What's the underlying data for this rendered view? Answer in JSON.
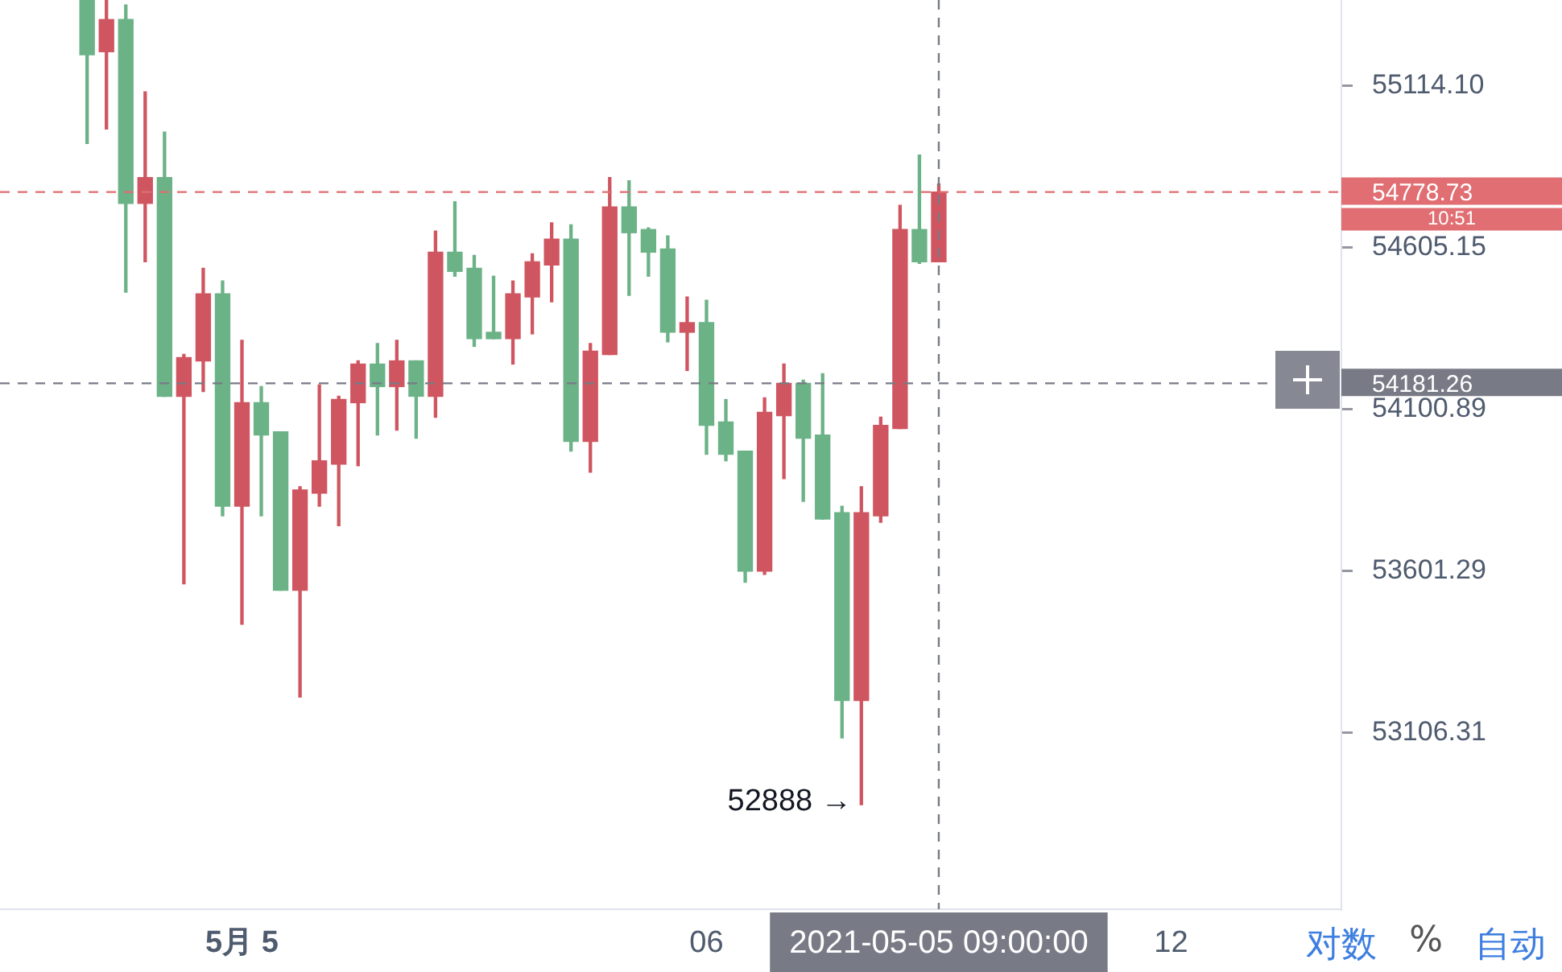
{
  "chart_data": {
    "type": "candlestick",
    "log": true,
    "grid": false,
    "x": [
      -2,
      -1.75,
      -1.5,
      -1.25,
      -1,
      -0.75,
      -0.5,
      -0.25,
      0,
      0.25,
      0.5,
      0.75,
      1,
      1.25,
      1.5,
      1.75,
      2,
      2.25,
      2.5,
      2.75,
      3,
      3.25,
      3.5,
      3.75,
      4,
      4.25,
      4.5,
      4.75,
      5,
      5.25,
      5.5,
      5.75,
      6,
      6.25,
      6.5,
      6.75,
      7,
      7.25,
      7.5,
      7.75,
      8,
      8.25,
      8.5,
      8.75,
      9
    ],
    "ohlc": [
      [
        55384,
        55384,
        54931,
        55211
      ],
      [
        55221,
        55384,
        54977,
        55323
      ],
      [
        55323,
        55369,
        54465,
        54743
      ],
      [
        54743,
        55094,
        54560,
        54824
      ],
      [
        54824,
        54967,
        54141,
        54141
      ],
      [
        54141,
        54271,
        53562,
        54261
      ],
      [
        54251,
        54540,
        54156,
        54460
      ],
      [
        54460,
        54500,
        53771,
        53801
      ],
      [
        53801,
        54315,
        53438,
        54121
      ],
      [
        54121,
        54171,
        53771,
        54021
      ],
      [
        54031,
        54031,
        53542,
        53542
      ],
      [
        53542,
        53861,
        53215,
        53851
      ],
      [
        53841,
        54176,
        53801,
        53941
      ],
      [
        53931,
        54141,
        53741,
        54131
      ],
      [
        54121,
        54251,
        53926,
        54241
      ],
      [
        54241,
        54305,
        54021,
        54171
      ],
      [
        54171,
        54315,
        54036,
        54251
      ],
      [
        54251,
        54251,
        54011,
        54141
      ],
      [
        54141,
        54656,
        54076,
        54590
      ],
      [
        54590,
        54748,
        54515,
        54530
      ],
      [
        54540,
        54580,
        54296,
        54320
      ],
      [
        54340,
        54515,
        54320,
        54320
      ],
      [
        54320,
        54500,
        54241,
        54460
      ],
      [
        54450,
        54585,
        54335,
        54560
      ],
      [
        54550,
        54682,
        54435,
        54631
      ],
      [
        54631,
        54676,
        53971,
        54001
      ],
      [
        54001,
        54305,
        53906,
        54281
      ],
      [
        54271,
        54824,
        54271,
        54732
      ],
      [
        54732,
        54814,
        54455,
        54651
      ],
      [
        54661,
        54666,
        54515,
        54590
      ],
      [
        54600,
        54641,
        54310,
        54340
      ],
      [
        54340,
        54450,
        54221,
        54370
      ],
      [
        54370,
        54440,
        53961,
        54051
      ],
      [
        54061,
        54131,
        53941,
        53961
      ],
      [
        53971,
        53971,
        53567,
        53601
      ],
      [
        53601,
        54136,
        53591,
        54091
      ],
      [
        54081,
        54241,
        53886,
        54181
      ],
      [
        54181,
        54191,
        53816,
        54011
      ],
      [
        54021,
        54211,
        53761,
        53761
      ],
      [
        53781,
        53801,
        53091,
        53205
      ],
      [
        53205,
        53861,
        52888,
        53781
      ],
      [
        53771,
        54076,
        53751,
        54051
      ],
      [
        54041,
        54737,
        54041,
        54661
      ],
      [
        54661,
        54895,
        54555,
        54560
      ],
      [
        54560,
        54804,
        54560,
        54778.73
      ]
    ],
    "colors": [
      "#6bb287",
      "#cf5660",
      "#6bb287",
      "#cf5660",
      "#6bb287",
      "#cf5660",
      "#cf5660",
      "#6bb287",
      "#cf5660",
      "#6bb287",
      "#6bb287",
      "#cf5660",
      "#cf5660",
      "#cf5660",
      "#cf5660",
      "#6bb287",
      "#cf5660",
      "#6bb287",
      "#cf5660",
      "#6bb287",
      "#6bb287",
      "#6bb287",
      "#cf5660",
      "#cf5660",
      "#cf5660",
      "#6bb287",
      "#cf5660",
      "#cf5660",
      "#6bb287",
      "#6bb287",
      "#6bb287",
      "#cf5660",
      "#6bb287",
      "#6bb287",
      "#6bb287",
      "#cf5660",
      "#cf5660",
      "#6bb287",
      "#6bb287",
      "#6bb287",
      "#cf5660",
      "#cf5660",
      "#cf5660",
      "#6bb287",
      "#cf5660"
    ],
    "xlim": [
      -3.125,
      14.2
    ],
    "xticks": [
      {
        "value": 0,
        "label": "5月 5"
      },
      {
        "value": 6,
        "label": "06"
      },
      {
        "value": 12,
        "label": "12"
      }
    ],
    "ylim": [
      52572,
      55385
    ],
    "yticks": [
      {
        "value": 53106.31,
        "label": "53106.31"
      },
      {
        "value": 53601.29,
        "label": "53601.29"
      },
      {
        "value": 54100.89,
        "label": "54100.89"
      },
      {
        "value": 54605.15,
        "label": "54605.15"
      },
      {
        "value": 55114.1,
        "label": "55114.10"
      }
    ],
    "ref_lines": [
      {
        "axis": "y",
        "value": 54778.73,
        "label": "54778.73",
        "color": "#e06e72",
        "line_style": "dashed"
      },
      {
        "axis": "y",
        "value": 54181.26,
        "label": "54181.26",
        "color": "#787b86",
        "line_style": "dashed"
      },
      {
        "axis": "x",
        "value": 9,
        "label": "2021-05-05 09:00:00",
        "color": "#787b86",
        "line_style": "dashed"
      }
    ],
    "annotations": [
      {
        "text": "52888 →",
        "x": 8,
        "y": 52888
      },
      "10:51",
      "对数",
      "%",
      "自动"
    ]
  }
}
